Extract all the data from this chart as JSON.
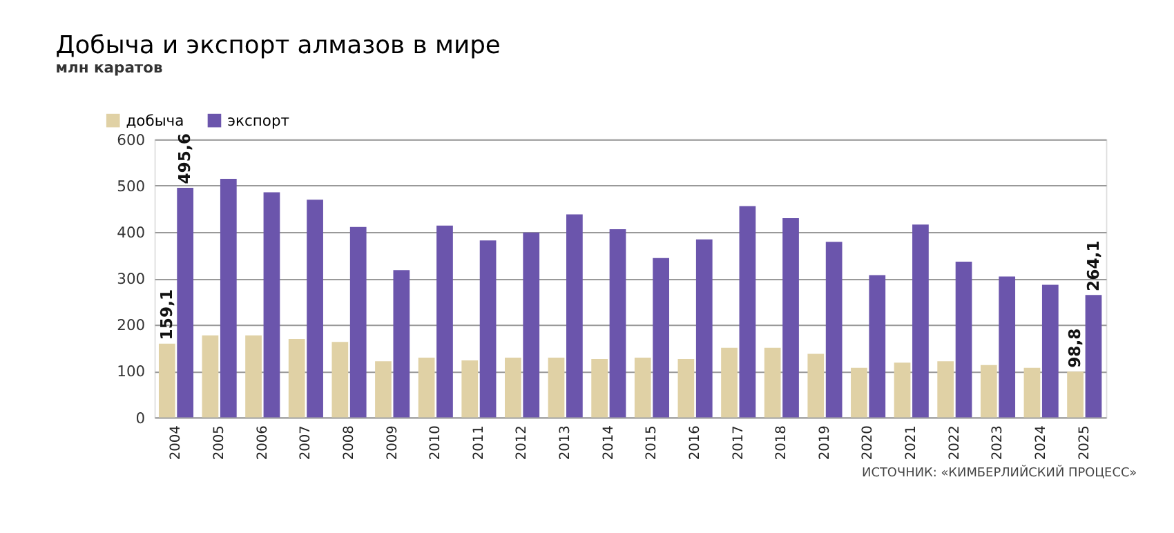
{
  "chart_data": {
    "type": "bar",
    "title": "Добыча и экспорт алмазов в мире",
    "subtitle": "млн каратов",
    "categories": [
      "2004",
      "2005",
      "2006",
      "2007",
      "2008",
      "2009",
      "2010",
      "2011",
      "2012",
      "2013",
      "2014",
      "2015",
      "2016",
      "2017",
      "2018",
      "2019",
      "2020",
      "2021",
      "2022",
      "2023",
      "2024",
      "2025"
    ],
    "series": [
      {
        "name": "добыча",
        "color": "#e0d1a5",
        "values": [
          159.1,
          177,
          177,
          169,
          163,
          121,
          129,
          123,
          129,
          129,
          126,
          129,
          126,
          150,
          150,
          137,
          107,
          118,
          121,
          113,
          107,
          98.8
        ],
        "value_labels": [
          "159,1",
          null,
          null,
          null,
          null,
          null,
          null,
          null,
          null,
          null,
          null,
          null,
          null,
          null,
          null,
          null,
          null,
          null,
          null,
          null,
          null,
          "98,8"
        ]
      },
      {
        "name": "экспорт",
        "color": "#6b55ac",
        "values": [
          495.6,
          515,
          486,
          470,
          411,
          318,
          414,
          382,
          399,
          438,
          406,
          344,
          384,
          456,
          430,
          379,
          307,
          416,
          336,
          304,
          286,
          264.1
        ],
        "value_labels": [
          "495,6",
          null,
          null,
          null,
          null,
          null,
          null,
          null,
          null,
          null,
          null,
          null,
          null,
          null,
          null,
          null,
          null,
          null,
          null,
          null,
          null,
          "264,1"
        ]
      }
    ],
    "ylim": [
      0,
      600
    ],
    "yticks": [
      0,
      100,
      200,
      300,
      400,
      500,
      600
    ],
    "grid": "y",
    "legend": "top left",
    "annotations": [
      "ИСТОЧНИК: «КИМБЕРЛИЙСКИЙ ПРОЦЕСС»"
    ]
  }
}
